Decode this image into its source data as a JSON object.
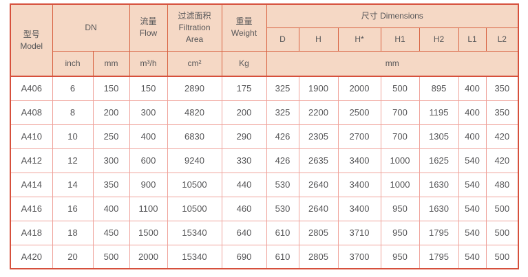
{
  "colors": {
    "header_fill": "#f5d8c5",
    "outer_border": "#d6503c",
    "header_grid": "#d8603f",
    "body_grid": "#efa29a",
    "text": "#565658"
  },
  "table": {
    "header": {
      "model": "型号\nModel",
      "dn": "DN",
      "flow": "流量\nFlow",
      "filtration_area": "过滤面积\nFiltration\nArea",
      "weight": "重量\nWeight",
      "dimensions": "尺寸 Dimensions",
      "unit_inch": "inch",
      "unit_mm": "mm",
      "unit_flow": "m³/h",
      "unit_area": "cm²",
      "unit_weight": "Kg",
      "unit_dimensions": "mm",
      "dim_cols": [
        "D",
        "H",
        "H*",
        "H1",
        "H2",
        "L1",
        "L2"
      ]
    },
    "column_keys": [
      "model",
      "dn-inch",
      "dn-mm",
      "flow",
      "filtration-area",
      "weight",
      "dim-d",
      "dim-h",
      "dim-hstar",
      "dim-h1",
      "dim-h2",
      "dim-l1",
      "dim-l2"
    ],
    "rows": [
      [
        "A406",
        "6",
        "150",
        "150",
        "2890",
        "175",
        "325",
        "1900",
        "2000",
        "500",
        "895",
        "400",
        "350"
      ],
      [
        "A408",
        "8",
        "200",
        "300",
        "4820",
        "200",
        "325",
        "2200",
        "2500",
        "700",
        "1195",
        "400",
        "350"
      ],
      [
        "A410",
        "10",
        "250",
        "400",
        "6830",
        "290",
        "426",
        "2305",
        "2700",
        "700",
        "1305",
        "400",
        "420"
      ],
      [
        "A412",
        "12",
        "300",
        "600",
        "9240",
        "330",
        "426",
        "2635",
        "3400",
        "1000",
        "1625",
        "540",
        "420"
      ],
      [
        "A414",
        "14",
        "350",
        "900",
        "10500",
        "440",
        "530",
        "2640",
        "3400",
        "1000",
        "1630",
        "540",
        "480"
      ],
      [
        "A416",
        "16",
        "400",
        "1100",
        "10500",
        "460",
        "530",
        "2640",
        "3400",
        "950",
        "1630",
        "540",
        "500"
      ],
      [
        "A418",
        "18",
        "450",
        "1500",
        "15340",
        "640",
        "610",
        "2805",
        "3710",
        "950",
        "1795",
        "540",
        "500"
      ],
      [
        "A420",
        "20",
        "500",
        "2000",
        "15340",
        "690",
        "610",
        "2805",
        "3700",
        "950",
        "1795",
        "540",
        "500"
      ]
    ]
  }
}
